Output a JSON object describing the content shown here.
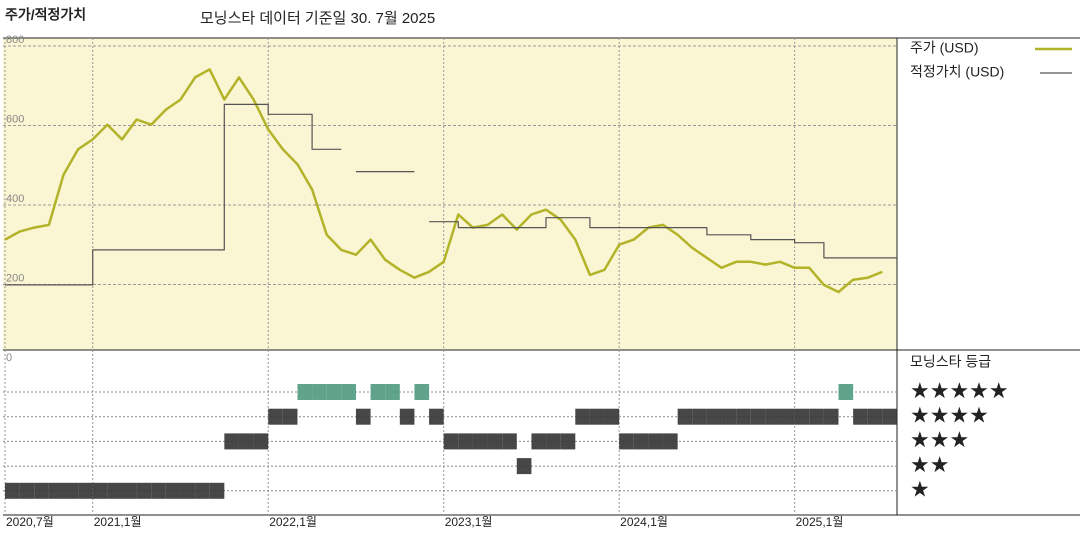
{
  "chart_data": [
    {
      "type": "line",
      "title": "주가/적정가치",
      "subtitle": "모닝스타 데이터 기준일 30. 7월 2025",
      "x": [
        "2020-07",
        "2020-08",
        "2020-09",
        "2020-10",
        "2020-11",
        "2020-12",
        "2021-01",
        "2021-02",
        "2021-03",
        "2021-04",
        "2021-05",
        "2021-06",
        "2021-07",
        "2021-08",
        "2021-09",
        "2021-10",
        "2021-11",
        "2021-12",
        "2022-01",
        "2022-02",
        "2022-03",
        "2022-04",
        "2022-05",
        "2022-06",
        "2022-07",
        "2022-08",
        "2022-09",
        "2022-10",
        "2022-11",
        "2022-12",
        "2023-01",
        "2023-02",
        "2023-03",
        "2023-04",
        "2023-05",
        "2023-06",
        "2023-07",
        "2023-08",
        "2023-09",
        "2023-10",
        "2023-11",
        "2023-12",
        "2024-01",
        "2024-02",
        "2024-03",
        "2024-04",
        "2024-05",
        "2024-06",
        "2024-07",
        "2024-08",
        "2024-09",
        "2024-10",
        "2024-11",
        "2024-12",
        "2025-01",
        "2025-02",
        "2025-03",
        "2025-04",
        "2025-05",
        "2025-06",
        "2025-07"
      ],
      "series": [
        {
          "name": "주가 (USD)",
          "color": "#b3b32a",
          "style": "line",
          "values": [
            313,
            333,
            343,
            350,
            476,
            540,
            565,
            602,
            565,
            615,
            602,
            640,
            665,
            721,
            741,
            665,
            721,
            665,
            590,
            540,
            502,
            439,
            325,
            287,
            275,
            313,
            262,
            237,
            217,
            232,
            257,
            376,
            343,
            350,
            376,
            338,
            376,
            388,
            363,
            313,
            224,
            237,
            300,
            313,
            343,
            350,
            325,
            292,
            267,
            242,
            257,
            257,
            250,
            257,
            242,
            242,
            199,
            181,
            212,
            217,
            232
          ]
        },
        {
          "name": "적정가치 (USD)",
          "color": "#555555",
          "style": "step",
          "values": [
            199,
            199,
            199,
            199,
            199,
            199,
            287,
            287,
            287,
            287,
            287,
            287,
            287,
            287,
            287,
            653,
            653,
            653,
            628,
            628,
            628,
            540,
            540,
            null,
            484,
            484,
            484,
            484,
            null,
            358,
            358,
            343,
            343,
            343,
            343,
            343,
            343,
            368,
            368,
            368,
            343,
            343,
            343,
            343,
            343,
            343,
            343,
            343,
            325,
            325,
            325,
            313,
            313,
            313,
            305,
            305,
            267,
            267,
            267,
            267,
            267
          ]
        }
      ],
      "xlim": [
        "2020-07",
        "2025-08"
      ],
      "xticks": [
        {
          "value": "2020-07",
          "label": "2020,7월"
        },
        {
          "value": "2021-01",
          "label": "2021,1월"
        },
        {
          "value": "2022-01",
          "label": "2022,1월"
        },
        {
          "value": "2023-01",
          "label": "2023,1월"
        },
        {
          "value": "2024-01",
          "label": "2024,1월"
        },
        {
          "value": "2025-01",
          "label": "2025,1월"
        }
      ],
      "ylim": [
        0,
        820
      ],
      "yticks": [
        0,
        200,
        400,
        600,
        800
      ],
      "grid": true
    },
    {
      "type": "rating",
      "title": "모닝스타 등급",
      "levels": [
        {
          "value": 1,
          "label": "★"
        },
        {
          "value": 2,
          "label": "★★"
        },
        {
          "value": 3,
          "label": "★★★"
        },
        {
          "value": 4,
          "label": "★★★★"
        },
        {
          "value": 5,
          "label": "★★★★★"
        }
      ],
      "colors": [
        "#333333",
        "#333333",
        "#333333",
        "#333333",
        "#4f9a80"
      ],
      "values": [
        1,
        1,
        1,
        1,
        1,
        1,
        1,
        1,
        1,
        1,
        1,
        1,
        1,
        1,
        1,
        3,
        3,
        3,
        4,
        4,
        5,
        5,
        5,
        5,
        4,
        5,
        5,
        4,
        5,
        4,
        3,
        3,
        3,
        3,
        3,
        2,
        3,
        3,
        3,
        4,
        4,
        4,
        3,
        3,
        3,
        3,
        4,
        4,
        4,
        4,
        4,
        4,
        4,
        4,
        4,
        4,
        4,
        5,
        4,
        4,
        4
      ]
    }
  ]
}
